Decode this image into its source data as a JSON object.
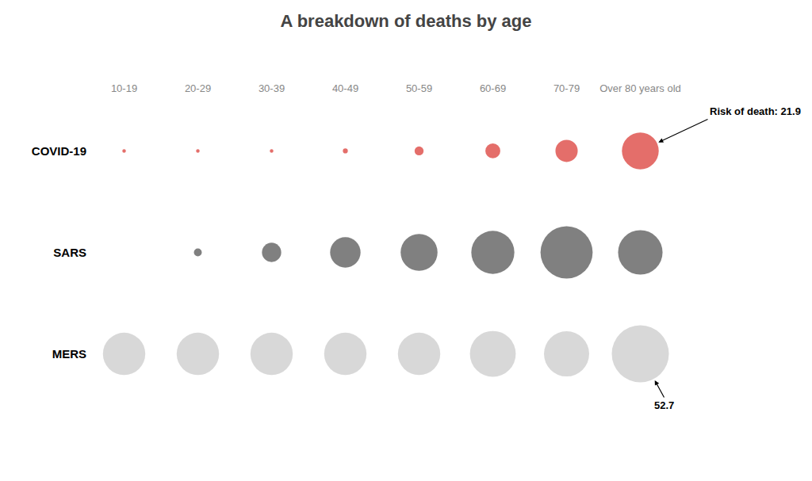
{
  "chart_data": {
    "type": "bubble",
    "title": "A breakdown of deaths by age",
    "categories": [
      "10-19",
      "20-29",
      "30-39",
      "40-49",
      "50-59",
      "60-69",
      "70-79",
      "Over 80 years old"
    ],
    "series": [
      {
        "name": "COVID-19",
        "color": "#d9312b",
        "values": [
          0.2,
          0.2,
          0.2,
          0.4,
          1.3,
          3.6,
          8.0,
          21.9
        ]
      },
      {
        "name": "SARS",
        "color": "#4a4a4a",
        "values": [
          null,
          1.0,
          6.0,
          15.0,
          22.0,
          30.0,
          44.0,
          32.0
        ]
      },
      {
        "name": "MERS",
        "color": "#c8c8c8",
        "values": [
          29.0,
          29.0,
          29.0,
          29.0,
          29.0,
          34.0,
          33.0,
          52.7
        ]
      }
    ],
    "annotations": [
      {
        "text": "Risk of death: 21.9",
        "series": "COVID-19",
        "category": "Over 80 years old"
      },
      {
        "text": "52.7",
        "series": "MERS",
        "category": "Over 80 years old"
      }
    ],
    "grid": false
  }
}
